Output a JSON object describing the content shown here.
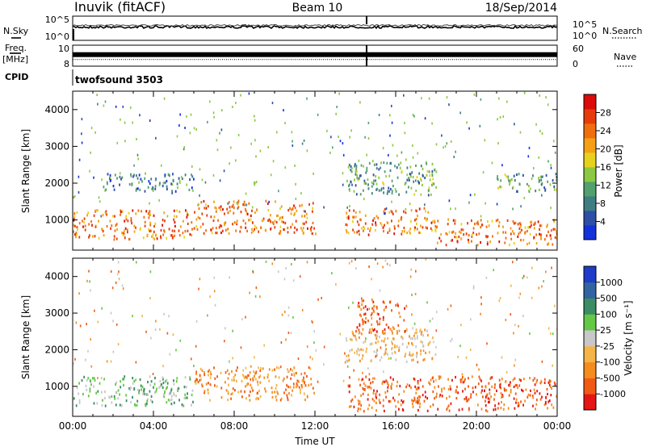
{
  "header": {
    "station": "Inuvik (fitACF)",
    "beam": "Beam 10",
    "date": "18/Sep/2014"
  },
  "top_panels": {
    "nsky": {
      "label": "N.Sky",
      "left_ticks": [
        "10^5",
        "10^0"
      ],
      "right_label": "N.Search",
      "right_ticks": [
        "10^5",
        "10^0"
      ],
      "nsky_level": 0.55,
      "nsearch_level": 0.62
    },
    "freq": {
      "label_line1": "Freq.",
      "label_line2": "[MHz]",
      "left_ticks": [
        "10",
        "8"
      ],
      "right_label": "Nave",
      "right_ticks": [
        "60",
        "0"
      ],
      "freq_level": 0.55,
      "nave_level": 0.32
    },
    "cpid": {
      "label": "CPID",
      "value": "twofsound 3503"
    }
  },
  "chart_data": [
    {
      "type": "heatmap",
      "name": "power",
      "xlabel": "",
      "ylabel": "Slant Range [km]",
      "xlim": [
        0,
        24
      ],
      "ylim": [
        180,
        4500
      ],
      "y_ticks": [
        1000,
        2000,
        3000,
        4000
      ],
      "colorbar": {
        "label": "Power [dB]",
        "tick_labels": [
          "4",
          "8",
          "12",
          "16",
          "20",
          "24",
          "28"
        ],
        "colors": [
          "#1432dc",
          "#2d4fa5",
          "#3f7d82",
          "#52a06e",
          "#8cc841",
          "#e6d21e",
          "#f5a014",
          "#f06e0f",
          "#e63c0a",
          "#dc0a0a"
        ]
      },
      "bands": [
        {
          "time_start": 0.0,
          "time_end": 6.0,
          "range_start": 500,
          "range_end": 1300,
          "dominant_db": 26
        },
        {
          "time_start": 6.0,
          "time_end": 12.0,
          "range_start": 650,
          "range_end": 1550,
          "dominant_db": 24
        },
        {
          "time_start": 13.5,
          "time_end": 18.0,
          "range_start": 620,
          "range_end": 1350,
          "dominant_db": 24
        },
        {
          "time_start": 18.0,
          "time_end": 24.0,
          "range_start": 350,
          "range_end": 1050,
          "dominant_db": 26
        },
        {
          "time_start": 1.5,
          "time_end": 6.0,
          "range_start": 1800,
          "range_end": 2300,
          "dominant_db": 8
        },
        {
          "time_start": 13.5,
          "time_end": 18.0,
          "range_start": 1700,
          "range_end": 2600,
          "dominant_db": 12
        },
        {
          "time_start": 21.0,
          "time_end": 24.0,
          "range_start": 1800,
          "range_end": 2300,
          "dominant_db": 10
        }
      ]
    },
    {
      "type": "heatmap",
      "name": "velocity",
      "xlabel": "Time UT",
      "ylabel": "Slant Range [km]",
      "xlim": [
        0,
        24
      ],
      "ylim": [
        180,
        4500
      ],
      "x_ticks": [
        "00:00",
        "04:00",
        "08:00",
        "12:00",
        "16:00",
        "20:00",
        "00:00"
      ],
      "y_ticks": [
        1000,
        2000,
        3000,
        4000
      ],
      "colorbar": {
        "label": "Velocity [m s⁻¹]",
        "tick_labels": [
          "-1000",
          "-500",
          "-100",
          "-25",
          "25",
          "100",
          "500",
          "1000"
        ],
        "colors": [
          "#e61414",
          "#f05a14",
          "#f58c1e",
          "#f5b446",
          "#c8c8c8",
          "#64c846",
          "#3c8c64",
          "#3264a0",
          "#1e3cc8"
        ]
      },
      "bands": [
        {
          "time_start": 0.0,
          "time_end": 6.0,
          "range_start": 500,
          "range_end": 1300,
          "dominant_velocity": 100
        },
        {
          "time_start": 6.0,
          "time_end": 12.0,
          "range_start": 650,
          "range_end": 1550,
          "dominant_velocity": -100
        },
        {
          "time_start": 13.5,
          "time_end": 24.0,
          "range_start": 350,
          "range_end": 1300,
          "dominant_velocity": -500
        },
        {
          "time_start": 13.5,
          "time_end": 18.0,
          "range_start": 1700,
          "range_end": 2600,
          "dominant_velocity": -25
        },
        {
          "time_start": 14.0,
          "time_end": 16.5,
          "range_start": 2500,
          "range_end": 3400,
          "dominant_velocity": -500
        }
      ]
    }
  ]
}
